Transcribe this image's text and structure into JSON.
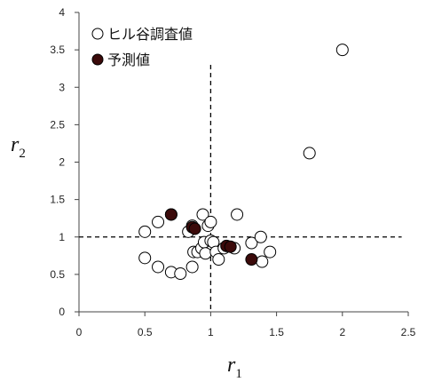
{
  "chart_data": {
    "type": "scatter",
    "xlim": [
      0,
      2.5
    ],
    "ylim": [
      0,
      4
    ],
    "x_ticks": [
      "0",
      "0.5",
      "1",
      "1.5",
      "2",
      "2.5"
    ],
    "y_ticks": [
      "0",
      "0.5",
      "1",
      "1.5",
      "2",
      "2.5",
      "3",
      "3.5",
      "4"
    ],
    "x_tick_values": [
      0,
      0.5,
      1,
      1.5,
      2,
      2.5
    ],
    "y_tick_values": [
      0,
      0.5,
      1,
      1.5,
      2,
      2.5,
      3,
      3.5,
      4
    ],
    "xlabel": {
      "main": "r",
      "sub": "1"
    },
    "ylabel": {
      "main": "r",
      "sub": "2"
    },
    "grid": false,
    "legend_position": "top-left",
    "reference_lines": [
      {
        "orientation": "vertical",
        "x": 1,
        "y_from": 0,
        "y_to": 3.3,
        "style": "dashed"
      },
      {
        "orientation": "horizontal",
        "y": 1,
        "x_from": 0,
        "x_to": 2.45,
        "style": "dashed"
      }
    ],
    "series": [
      {
        "name": "ヒル谷調査値",
        "marker": "open-circle",
        "color": "#000000",
        "fill": "#ffffff",
        "points": [
          [
            2.0,
            3.5
          ],
          [
            1.75,
            2.12
          ],
          [
            0.5,
            1.07
          ],
          [
            0.6,
            1.2
          ],
          [
            0.7,
            1.3
          ],
          [
            0.83,
            1.07
          ],
          [
            0.86,
            1.15
          ],
          [
            0.94,
            1.3
          ],
          [
            0.98,
            1.15
          ],
          [
            1.0,
            1.2
          ],
          [
            1.2,
            1.3
          ],
          [
            0.5,
            0.72
          ],
          [
            0.6,
            0.6
          ],
          [
            0.7,
            0.53
          ],
          [
            0.77,
            0.51
          ],
          [
            0.86,
            0.6
          ],
          [
            0.87,
            0.8
          ],
          [
            0.9,
            0.8
          ],
          [
            0.93,
            0.85
          ],
          [
            0.95,
            0.93
          ],
          [
            0.96,
            0.78
          ],
          [
            1.0,
            0.95
          ],
          [
            1.02,
            0.93
          ],
          [
            1.04,
            0.8
          ],
          [
            1.06,
            0.7
          ],
          [
            1.1,
            0.85
          ],
          [
            1.18,
            0.85
          ],
          [
            1.31,
            0.92
          ],
          [
            1.38,
            1.0
          ],
          [
            1.39,
            0.67
          ],
          [
            1.45,
            0.8
          ]
        ]
      },
      {
        "name": "予測値",
        "marker": "filled-circle",
        "color": "#000000",
        "fill": "#3b0a0a",
        "points": [
          [
            0.7,
            1.3
          ],
          [
            0.86,
            1.13
          ],
          [
            0.88,
            1.11
          ],
          [
            1.12,
            0.88
          ],
          [
            1.15,
            0.87
          ],
          [
            1.31,
            0.7
          ]
        ]
      }
    ]
  }
}
